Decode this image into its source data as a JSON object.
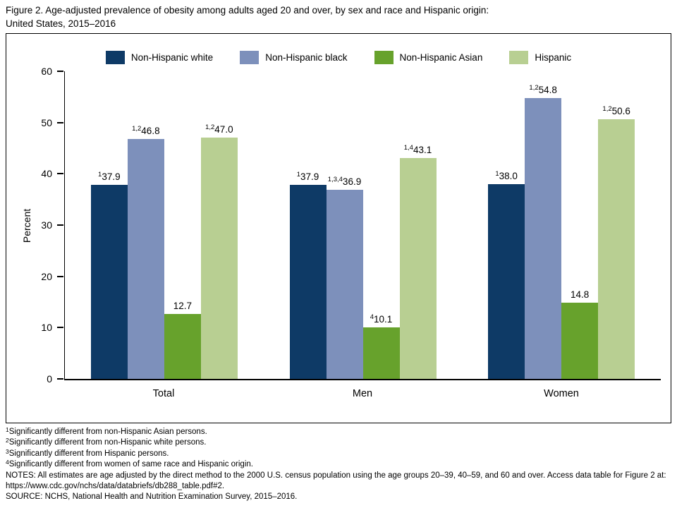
{
  "title": {
    "line1": "Figure 2. Age-adjusted prevalence of obesity among adults aged 20 and over, by sex and race and Hispanic origin:",
    "line2": "United States, 2015–2016"
  },
  "chart_data": {
    "type": "bar",
    "title": "Figure 2. Age-adjusted prevalence of obesity among adults aged 20 and over, by sex and race and Hispanic origin: United States, 2015–2016",
    "ylabel": "Percent",
    "ylim": [
      0,
      60
    ],
    "yticks": [
      0,
      10,
      20,
      30,
      40,
      50,
      60
    ],
    "grid": false,
    "legend_position": "top",
    "categories": [
      "Total",
      "Men",
      "Women"
    ],
    "series": [
      {
        "name": "Non-Hispanic white",
        "color": "#0e3a66",
        "values": [
          37.9,
          37.9,
          38.0
        ],
        "footnote_markers": [
          "1",
          "1",
          "1"
        ]
      },
      {
        "name": "Non-Hispanic black",
        "color": "#7d90bb",
        "values": [
          46.8,
          36.9,
          54.8
        ],
        "footnote_markers": [
          "1,2",
          "1,3,4",
          "1,2"
        ]
      },
      {
        "name": "Non-Hispanic Asian",
        "color": "#67a22c",
        "values": [
          12.7,
          10.1,
          14.8
        ],
        "footnote_markers": [
          "",
          "4",
          ""
        ]
      },
      {
        "name": "Hispanic",
        "color": "#b8cf92",
        "values": [
          47.0,
          43.1,
          50.6
        ],
        "footnote_markers": [
          "1,2",
          "1,4",
          "1,2"
        ]
      }
    ]
  },
  "footnotes": [
    {
      "marker": "1",
      "text": "Significantly different from non-Hispanic Asian persons."
    },
    {
      "marker": "2",
      "text": "Significantly different from non-Hispanic white persons."
    },
    {
      "marker": "3",
      "text": "Significantly different from Hispanic persons."
    },
    {
      "marker": "4",
      "text": "Significantly different from women of same race and Hispanic origin."
    }
  ],
  "notes": "NOTES: All estimates are age adjusted by the direct method to the 2000 U.S. census population using the age groups 20–39, 40–59, and 60 and over. Access data table for Figure 2 at: https://www.cdc.gov/nchs/data/databriefs/db288_table.pdf#2.",
  "source": "SOURCE: NCHS, National Health and Nutrition Examination Survey, 2015–2016."
}
